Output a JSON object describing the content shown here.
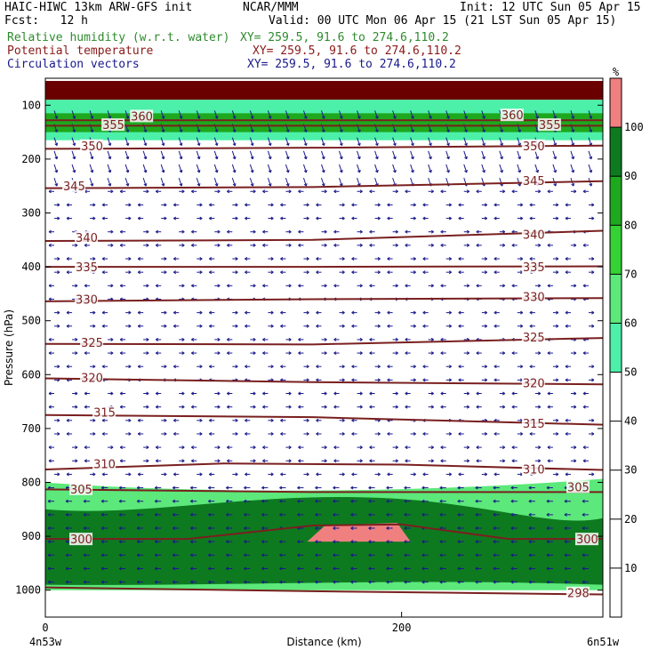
{
  "header": {
    "line1_left": "HAIC-HIWC 13km ARW-GFS init",
    "line1_center": "NCAR/MMM",
    "line1_right": "Init: 12 UTC Sun 05 Apr 15",
    "fcst": "Fcst:   12 h",
    "valid": "Valid: 00 UTC Mon 06 Apr 15 (21 LST Sun 05 Apr 15)",
    "fields": [
      {
        "name": "Relative humidity (w.r.t. water)",
        "xy": "XY= 259.5, 91.6 to 274.6,110.2",
        "color": "#2e8b2e"
      },
      {
        "name": "Potential temperature",
        "xy": "XY= 259.5, 91.6 to 274.6,110.2",
        "color": "#8b1a1a"
      },
      {
        "name": "Circulation vectors",
        "xy": "XY= 259.5, 91.6 to 274.6,110.2",
        "color": "#1a1a8b"
      }
    ]
  },
  "chart_data": {
    "type": "heatmap",
    "title": "",
    "xlabel": "Distance (km)",
    "ylabel": "Pressure (hPa)",
    "xlim": [
      0,
      313
    ],
    "ylim": [
      1050,
      50
    ],
    "x_ticks": [
      0,
      200
    ],
    "x_tick_labels": [
      "0",
      "200"
    ],
    "x_end_labels": [
      "4n53w",
      "6n51w"
    ],
    "y_ticks": [
      100,
      200,
      300,
      400,
      500,
      600,
      700,
      800,
      900,
      1000
    ],
    "colorbar": {
      "unit": "%",
      "levels": [
        10,
        20,
        30,
        40,
        50,
        60,
        70,
        80,
        90,
        100
      ],
      "colors": {
        "50-60": "#4cf0a8",
        "60-70": "#5ce87a",
        "70-80": "#34d234",
        "80-90": "#1ea81e",
        "90-100": "#0e7a20",
        "100+": "#f08080"
      }
    },
    "rh_regions": [
      {
        "name": "upper-dark-band",
        "color": "#6b0000",
        "p_top": 55,
        "p_bottom": 90
      },
      {
        "name": "upper-moist-band",
        "color": "#4cf0a8",
        "p_top": 90,
        "p_bottom": 165
      },
      {
        "name": "upper-moist-core",
        "color": "#1ea81e",
        "p_top": 115,
        "p_bottom": 150
      },
      {
        "name": "lower-moist-layer",
        "color": "#5ce87a",
        "p_top": 800,
        "p_bottom": 1000
      },
      {
        "name": "lower-moist-core",
        "color": "#0e7a20",
        "p_top": 850,
        "p_bottom": 990
      },
      {
        "name": "supersat-patch",
        "color": "#f08080",
        "p_top": 875,
        "p_bottom": 910,
        "x_from": 147,
        "x_to": 205
      }
    ],
    "theta_contours": [
      {
        "value": 360,
        "levels": [
          [
            0,
            128
          ],
          [
            313,
            128
          ]
        ]
      },
      {
        "value": 355,
        "levels": [
          [
            0,
            138
          ],
          [
            313,
            138
          ]
        ]
      },
      {
        "value": 350,
        "levels": [
          [
            0,
            181
          ],
          [
            150,
            179
          ],
          [
            313,
            175
          ]
        ]
      },
      {
        "value": 345,
        "levels": [
          [
            0,
            254
          ],
          [
            150,
            252
          ],
          [
            313,
            241
          ]
        ]
      },
      {
        "value": 340,
        "levels": [
          [
            0,
            352
          ],
          [
            150,
            350
          ],
          [
            313,
            333
          ]
        ]
      },
      {
        "value": 335,
        "levels": [
          [
            0,
            400
          ],
          [
            150,
            400
          ],
          [
            313,
            399
          ]
        ]
      },
      {
        "value": 330,
        "levels": [
          [
            0,
            464
          ],
          [
            150,
            460
          ],
          [
            313,
            458
          ]
        ]
      },
      {
        "value": 325,
        "levels": [
          [
            0,
            543
          ],
          [
            150,
            544
          ],
          [
            313,
            532
          ]
        ]
      },
      {
        "value": 320,
        "levels": [
          [
            0,
            607
          ],
          [
            150,
            614
          ],
          [
            313,
            618
          ]
        ]
      },
      {
        "value": 315,
        "levels": [
          [
            0,
            675
          ],
          [
            150,
            679
          ],
          [
            313,
            693
          ]
        ]
      },
      {
        "value": 310,
        "levels": [
          [
            0,
            776
          ],
          [
            100,
            765
          ],
          [
            200,
            767
          ],
          [
            313,
            777
          ]
        ]
      },
      {
        "value": 305,
        "levels": [
          [
            0,
            813
          ],
          [
            150,
            818
          ],
          [
            313,
            818
          ]
        ]
      },
      {
        "value": 300,
        "levels": [
          [
            0,
            905
          ],
          [
            80,
            905
          ],
          [
            150,
            880
          ],
          [
            200,
            878
          ],
          [
            260,
            905
          ],
          [
            313,
            905
          ]
        ]
      },
      {
        "value": 298,
        "levels": [
          [
            0,
            995
          ],
          [
            150,
            1002
          ],
          [
            313,
            1008
          ]
        ]
      }
    ],
    "contour_labels": [
      {
        "value": "360",
        "x": 48,
        "p": 120
      },
      {
        "value": "355",
        "x": 32,
        "p": 136
      },
      {
        "value": "350",
        "x": 20,
        "p": 175
      },
      {
        "value": "345",
        "x": 10,
        "p": 250
      },
      {
        "value": "340",
        "x": 17,
        "p": 345
      },
      {
        "value": "335",
        "x": 17,
        "p": 400
      },
      {
        "value": "330",
        "x": 17,
        "p": 460
      },
      {
        "value": "325",
        "x": 20,
        "p": 540
      },
      {
        "value": "320",
        "x": 20,
        "p": 605
      },
      {
        "value": "315",
        "x": 27,
        "p": 670
      },
      {
        "value": "310",
        "x": 27,
        "p": 765
      },
      {
        "value": "305",
        "x": 14,
        "p": 812
      },
      {
        "value": "300",
        "x": 14,
        "p": 905
      },
      {
        "value": "360",
        "x": 256,
        "p": 118
      },
      {
        "value": "355",
        "x": 277,
        "p": 136
      },
      {
        "value": "350",
        "x": 268,
        "p": 175
      },
      {
        "value": "345",
        "x": 268,
        "p": 240
      },
      {
        "value": "340",
        "x": 268,
        "p": 340
      },
      {
        "value": "335",
        "x": 268,
        "p": 400
      },
      {
        "value": "330",
        "x": 268,
        "p": 455
      },
      {
        "value": "325",
        "x": 268,
        "p": 530
      },
      {
        "value": "320",
        "x": 268,
        "p": 615
      },
      {
        "value": "315",
        "x": 268,
        "p": 690
      },
      {
        "value": "310",
        "x": 268,
        "p": 775
      },
      {
        "value": "305",
        "x": 293,
        "p": 808
      },
      {
        "value": "300",
        "x": 298,
        "p": 905
      },
      {
        "value": "298",
        "x": 293,
        "p": 1005
      }
    ],
    "vector_grid": {
      "x_step_km": 10,
      "p_step_hPa": 25,
      "color": "#1a1a8b"
    }
  }
}
